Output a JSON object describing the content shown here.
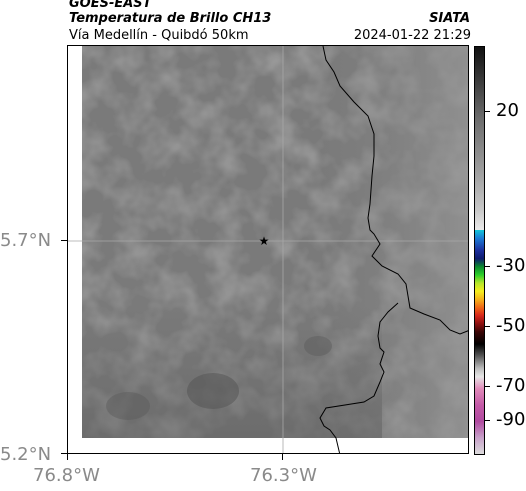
{
  "header": {
    "title": "GOES-EAST",
    "subtitle": "Temperatura de Brillo CH13",
    "org": "SIATA",
    "region": "Vía Medellín - Quibdó 50km",
    "datetime": "2024-01-22 21:29"
  },
  "map": {
    "lat_labels": [
      "5.7°N",
      "5.2°N"
    ],
    "lon_labels": [
      "76.8°W",
      "76.3°W"
    ],
    "marker": "star-marker"
  },
  "colorbar": {
    "ticks": [
      "20",
      "-30",
      "-50",
      "-70",
      "-90"
    ]
  },
  "colors": {
    "field": "#7b7b7b",
    "coast": "#000000"
  }
}
